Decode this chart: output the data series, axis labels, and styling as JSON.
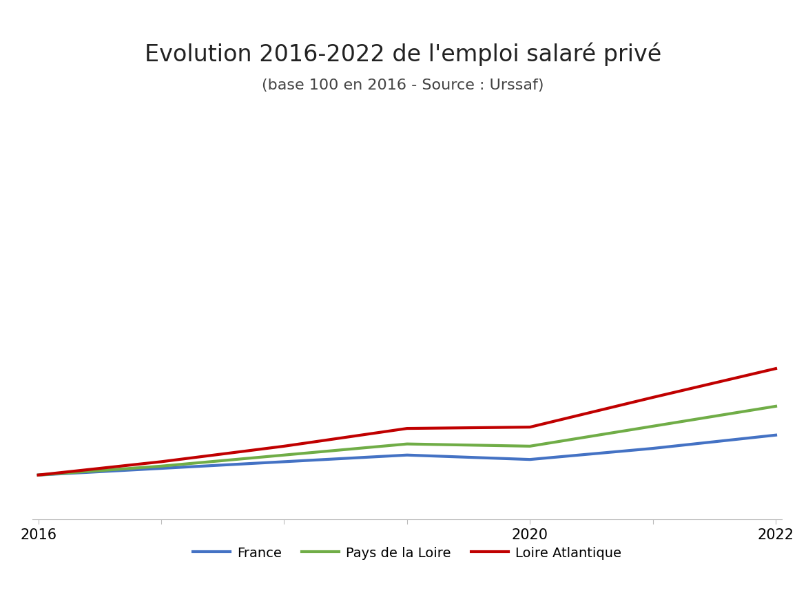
{
  "title": "Evolution 2016-2022 de l'emploi salaré privé",
  "subtitle": "(base 100 en 2016 - Source : Urssaf)",
  "years": [
    2016,
    2017,
    2018,
    2019,
    2020,
    2021,
    2022
  ],
  "france": [
    100,
    101.5,
    103.0,
    104.5,
    103.5,
    106.0,
    109.0
  ],
  "pays_de_la_loire": [
    100,
    102.0,
    104.5,
    107.0,
    106.5,
    111.0,
    115.5
  ],
  "loire_atlantique": [
    100,
    103.0,
    106.5,
    110.5,
    110.8,
    117.5,
    124.0
  ],
  "france_color": "#4472C4",
  "pays_de_la_loire_color": "#70AD47",
  "loire_atlantique_color": "#C00000",
  "line_width": 3.0,
  "legend_labels": [
    "France",
    "Pays de la Loire",
    "Loire Atlantique"
  ],
  "xlim": [
    2016,
    2022
  ],
  "ylim": [
    90,
    180
  ],
  "background_color": "#FFFFFF",
  "title_fontsize": 24,
  "subtitle_fontsize": 16,
  "tick_fontsize": 15,
  "legend_fontsize": 14,
  "xticks": [
    2016,
    2017,
    2018,
    2019,
    2020,
    2021,
    2022
  ],
  "xtick_labels": [
    "2016",
    "",
    "",
    "",
    "2020",
    "",
    "2022"
  ]
}
